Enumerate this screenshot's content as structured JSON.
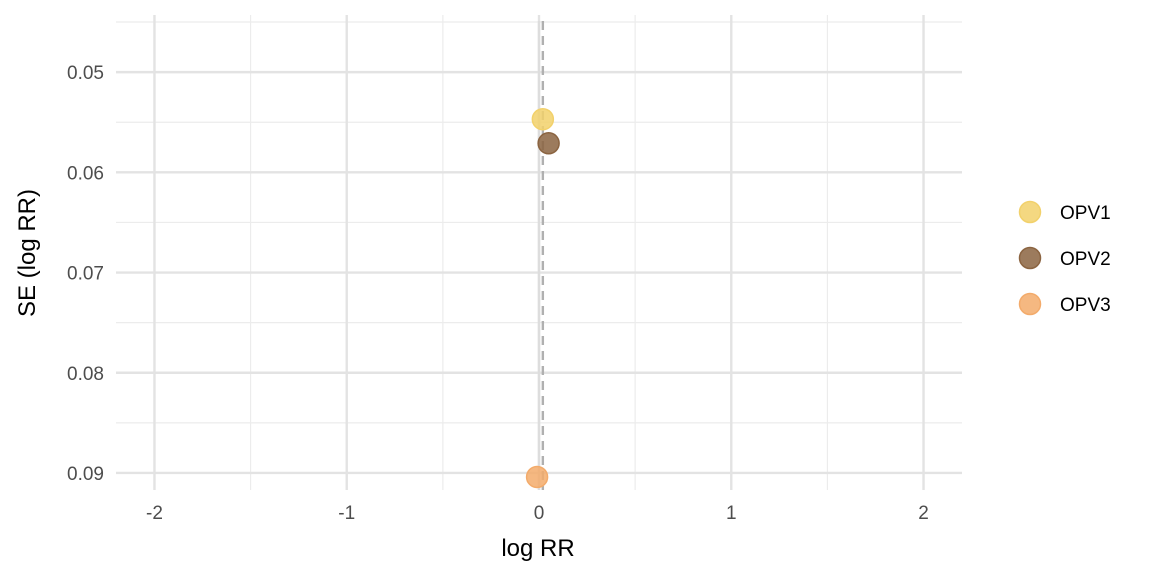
{
  "chart_data": {
    "type": "scatter",
    "title": "",
    "xlabel": "log RR",
    "ylabel": "SE (log RR)",
    "xlim": [
      -2.2,
      2.2
    ],
    "ylim": [
      0.0443,
      0.0917
    ],
    "y_reversed": true,
    "x_ticks": [
      -2,
      -1,
      0,
      1,
      2
    ],
    "x_tick_labels": [
      "-2",
      "-1",
      "0",
      "1",
      "2"
    ],
    "y_ticks": [
      0.05,
      0.06,
      0.07,
      0.08,
      0.09
    ],
    "y_tick_labels": [
      "0.05",
      "0.06",
      "0.07",
      "0.08",
      "0.09"
    ],
    "grid": true,
    "reference_lines": [
      {
        "x": 0,
        "style": "solid",
        "color": "#dddddd"
      },
      {
        "x": 0.02,
        "style": "dashed",
        "color": "#b0b0b0"
      }
    ],
    "legend_position": "right",
    "series": [
      {
        "name": "OPV1",
        "color": "#f2d16b",
        "x": [
          0.02
        ],
        "y": [
          0.0547
        ]
      },
      {
        "name": "OPV2",
        "color": "#8b6441",
        "x": [
          0.05
        ],
        "y": [
          0.0571
        ]
      },
      {
        "name": "OPV3",
        "color": "#f3ab6b",
        "x": [
          -0.01
        ],
        "y": [
          0.0904
        ]
      }
    ]
  }
}
